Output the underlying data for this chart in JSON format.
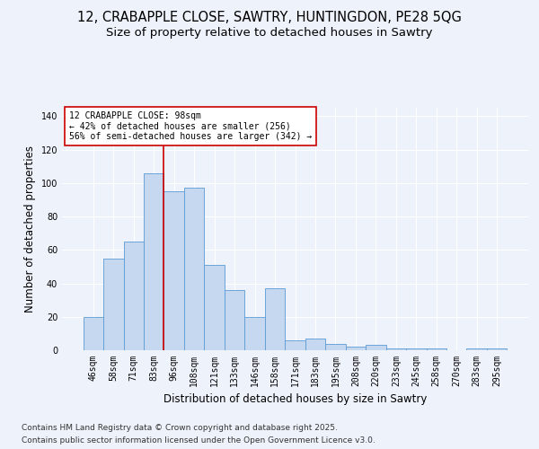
{
  "title_line1": "12, CRABAPPLE CLOSE, SAWTRY, HUNTINGDON, PE28 5QG",
  "title_line2": "Size of property relative to detached houses in Sawtry",
  "xlabel": "Distribution of detached houses by size in Sawtry",
  "ylabel": "Number of detached properties",
  "categories": [
    "46sqm",
    "58sqm",
    "71sqm",
    "83sqm",
    "96sqm",
    "108sqm",
    "121sqm",
    "133sqm",
    "146sqm",
    "158sqm",
    "171sqm",
    "183sqm",
    "195sqm",
    "208sqm",
    "220sqm",
    "233sqm",
    "245sqm",
    "258sqm",
    "270sqm",
    "283sqm",
    "295sqm"
  ],
  "values": [
    20,
    55,
    65,
    106,
    95,
    97,
    51,
    36,
    20,
    37,
    6,
    7,
    4,
    2,
    3,
    1,
    1,
    1,
    0,
    1,
    1
  ],
  "bar_color": "#c5d8f0",
  "bar_edge_color": "#5b9bd5",
  "vline_x": 3.5,
  "vline_color": "#cc0000",
  "annotation_text": "12 CRABAPPLE CLOSE: 98sqm\n← 42% of detached houses are smaller (256)\n56% of semi-detached houses are larger (342) →",
  "annotation_box_color": "#ffffff",
  "annotation_box_edge": "#cc0000",
  "ylim": [
    0,
    145
  ],
  "yticks": [
    0,
    20,
    40,
    60,
    80,
    100,
    120,
    140
  ],
  "background_color": "#eef2fb",
  "plot_bg_color": "#eef2fb",
  "footer_line1": "Contains HM Land Registry data © Crown copyright and database right 2025.",
  "footer_line2": "Contains public sector information licensed under the Open Government Licence v3.0.",
  "grid_color": "#ffffff",
  "title_fontsize": 10.5,
  "subtitle_fontsize": 9.5,
  "tick_fontsize": 7,
  "label_fontsize": 8.5,
  "footer_fontsize": 6.5,
  "annotation_fontsize": 7
}
